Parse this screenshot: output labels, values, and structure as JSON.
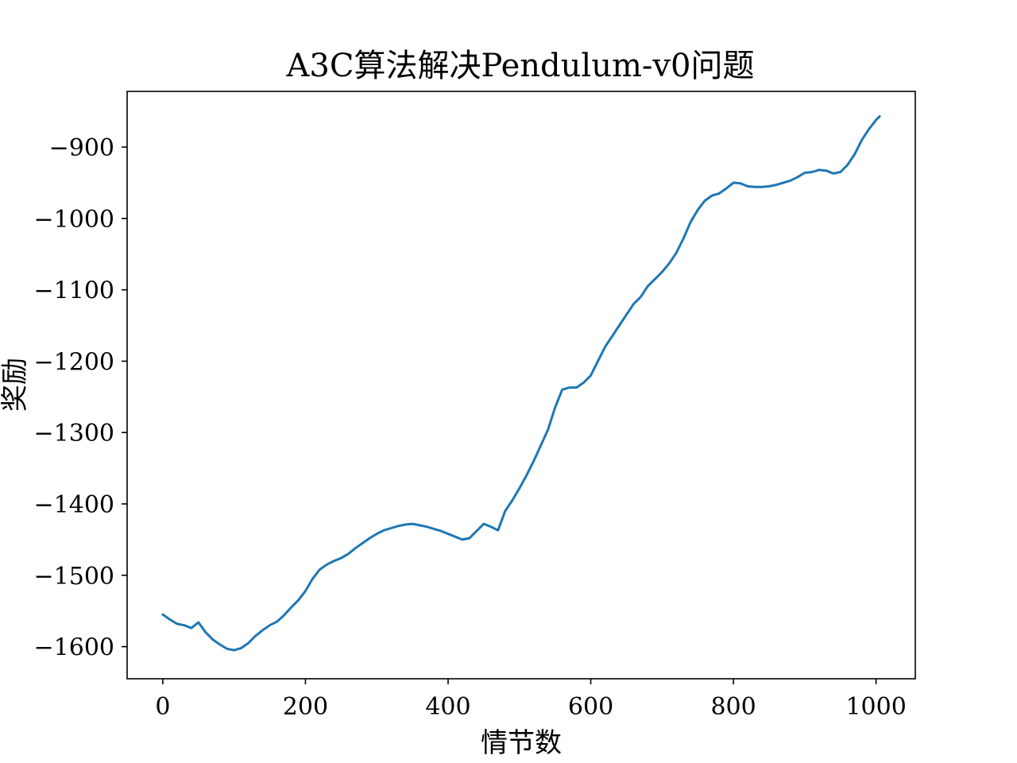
{
  "chart_data": {
    "type": "line",
    "title": "A3C算法解决Pendulum-v0问题",
    "xlabel": "情节数",
    "ylabel": "奖励",
    "xlim": [
      -50,
      1055
    ],
    "ylim": [
      -1645,
      -822
    ],
    "xticks": [
      0,
      200,
      400,
      600,
      800,
      1000
    ],
    "yticks": [
      -900,
      -1000,
      -1100,
      -1200,
      -1300,
      -1400,
      -1500,
      -1600
    ],
    "xtick_labels": [
      "0",
      "200",
      "400",
      "600",
      "800",
      "1000"
    ],
    "ytick_labels": [
      "−900",
      "−1000",
      "−1100",
      "−1200",
      "−1300",
      "−1400",
      "−1500",
      "−1600"
    ],
    "grid": false,
    "colors": {
      "line": "#1f77b4",
      "axes": "#000000"
    },
    "series": [
      {
        "x": [
          0,
          10,
          20,
          30,
          40,
          50,
          60,
          70,
          80,
          90,
          100,
          110,
          120,
          130,
          140,
          150,
          160,
          170,
          180,
          190,
          200,
          210,
          220,
          230,
          240,
          250,
          260,
          270,
          280,
          290,
          300,
          310,
          320,
          330,
          340,
          350,
          360,
          370,
          380,
          390,
          400,
          410,
          420,
          430,
          440,
          450,
          460,
          470,
          480,
          490,
          500,
          510,
          520,
          530,
          540,
          550,
          560,
          570,
          580,
          590,
          600,
          610,
          620,
          630,
          640,
          650,
          660,
          670,
          680,
          690,
          700,
          710,
          720,
          730,
          740,
          750,
          760,
          770,
          780,
          790,
          800,
          810,
          820,
          830,
          840,
          850,
          860,
          870,
          880,
          890,
          900,
          910,
          920,
          930,
          940,
          950,
          960,
          970,
          980,
          990,
          1000,
          1005
        ],
        "values": [
          -1555,
          -1562,
          -1568,
          -1570,
          -1574,
          -1566,
          -1580,
          -1590,
          -1597,
          -1603,
          -1605,
          -1602,
          -1595,
          -1585,
          -1577,
          -1570,
          -1565,
          -1556,
          -1545,
          -1535,
          -1522,
          -1505,
          -1492,
          -1485,
          -1480,
          -1476,
          -1470,
          -1462,
          -1455,
          -1448,
          -1442,
          -1437,
          -1434,
          -1431,
          -1429,
          -1428,
          -1430,
          -1432,
          -1435,
          -1438,
          -1442,
          -1446,
          -1450,
          -1448,
          -1438,
          -1428,
          -1432,
          -1437,
          -1410,
          -1395,
          -1378,
          -1360,
          -1340,
          -1318,
          -1296,
          -1265,
          -1240,
          -1237,
          -1237,
          -1230,
          -1220,
          -1200,
          -1180,
          -1165,
          -1150,
          -1135,
          -1120,
          -1110,
          -1095,
          -1085,
          -1075,
          -1063,
          -1048,
          -1028,
          -1005,
          -988,
          -975,
          -968,
          -965,
          -958,
          -950,
          -951,
          -955,
          -956,
          -956,
          -955,
          -953,
          -950,
          -947,
          -942,
          -936,
          -935,
          -932,
          -933,
          -937,
          -935,
          -925,
          -910,
          -890,
          -875,
          -862,
          -857
        ]
      }
    ]
  }
}
